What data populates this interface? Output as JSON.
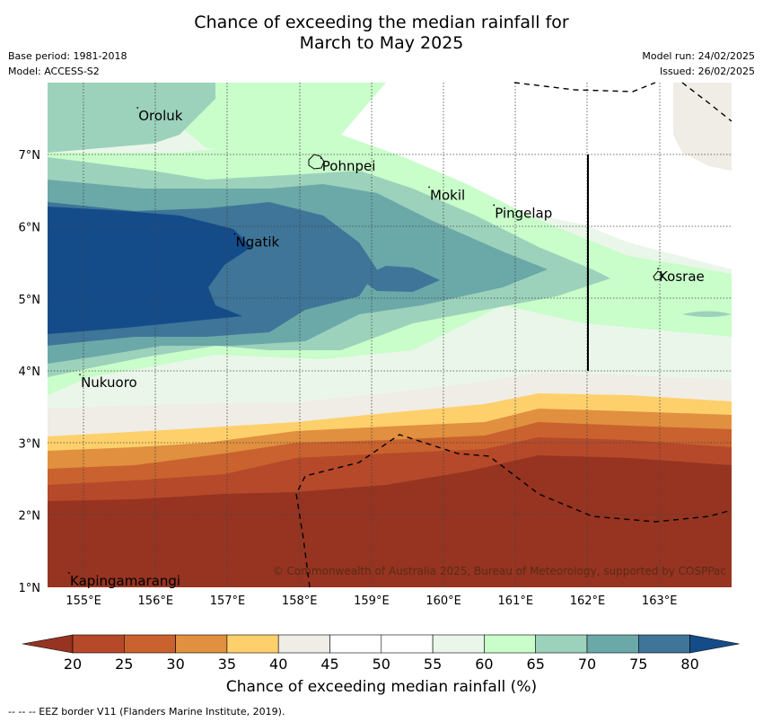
{
  "title": [
    "Chance of exceeding the median rainfall for",
    "March to May 2025"
  ],
  "meta_left": [
    "Base period: 1981-2018",
    "Model: ACCESS-S2"
  ],
  "meta_right": [
    "Model run: 24/02/2025",
    "Issued: 26/02/2025"
  ],
  "copyright": "© Commonwealth of Australia 2025, Bureau of Meteorology, supported by COSPPac",
  "lon_ticks": [
    "155°E",
    "156°E",
    "157°E",
    "158°E",
    "159°E",
    "160°E",
    "161°E",
    "162°E",
    "163°E"
  ],
  "lat_ticks": [
    "7°N",
    "6°N",
    "5°N",
    "4°N",
    "3°N",
    "2°N",
    "1°N"
  ],
  "places": [
    {
      "name": "Oroluk",
      "lon": 155.75,
      "lat": 7.55
    },
    {
      "name": "Pohnpei",
      "lon": 158.3,
      "lat": 6.85
    },
    {
      "name": "Mokil",
      "lon": 159.8,
      "lat": 6.45
    },
    {
      "name": "Pingelap",
      "lon": 160.7,
      "lat": 6.2
    },
    {
      "name": "Ngatik",
      "lon": 157.1,
      "lat": 5.8
    },
    {
      "name": "Kosrae",
      "lon": 162.98,
      "lat": 5.32
    },
    {
      "name": "Nukuoro",
      "lon": 154.95,
      "lat": 3.85
    },
    {
      "name": "Kapingamarangi",
      "lon": 154.8,
      "lat": 1.1
    }
  ],
  "colorbar": {
    "ticks": [
      "20",
      "25",
      "30",
      "35",
      "40",
      "45",
      "50",
      "55",
      "60",
      "65",
      "70",
      "75",
      "80"
    ],
    "colors": [
      "#b5492a",
      "#c9622e",
      "#e0903f",
      "#fdd06b",
      "#f0ece6",
      "#ffffff",
      "#ffffff",
      "#eaf6ea",
      "#c9fdca",
      "#9cd2bb",
      "#6ba8a8",
      "#3e7598"
    ],
    "under_color": "#963421",
    "over_color": "#144c8a",
    "label": "Chance of exceeding median rainfall (%)"
  },
  "footer": "--  --  -- EEZ border V11 (Flanders Marine Institute, 2019)."
}
